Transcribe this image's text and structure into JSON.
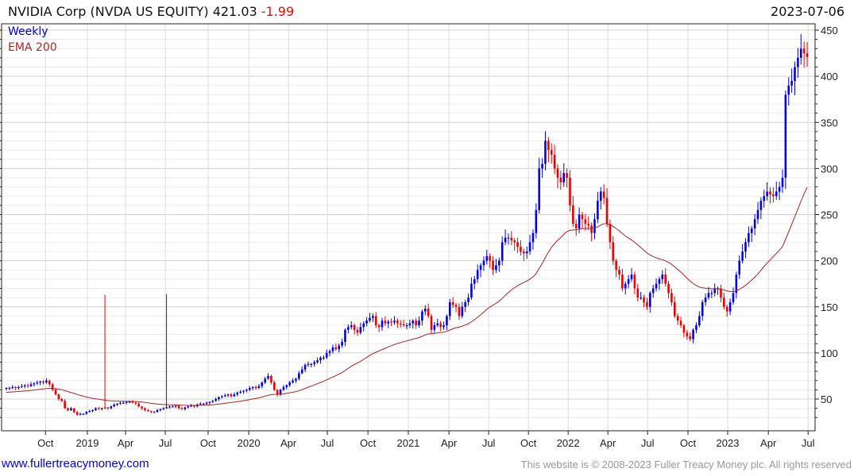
{
  "header": {
    "name": "NVIDIA Corp (NVDA US EQUITY)",
    "price": "421.03",
    "change": "-1.99",
    "date": "2023-07-06"
  },
  "legend": {
    "period": "Weekly",
    "indicator": "EMA 200"
  },
  "footer": {
    "site": "www.fullertreacymoney.com",
    "copyright": "This website is © 2008-2023 Fuller Treacy Money plc. All rights reserved"
  },
  "colors": {
    "up": "#0000ee",
    "down": "#ee0000",
    "ema": "#b22222",
    "grid": "#dcdcdc"
  },
  "chart_data": {
    "type": "candlestick",
    "title": "NVIDIA Corp (NVDA US EQUITY) 421.03 -1.99",
    "ylim": [
      25,
      455
    ],
    "y_ticks": [
      50,
      100,
      150,
      200,
      250,
      300,
      350,
      400,
      450
    ],
    "x_ticks": [
      {
        "label": "Oct",
        "week": 12.7
      },
      {
        "label": "2019",
        "week": 26.3
      },
      {
        "label": "Apr",
        "week": 38.7
      },
      {
        "label": "Jul",
        "week": 51.6
      },
      {
        "label": "Oct",
        "week": 65.5
      },
      {
        "label": "2020",
        "week": 78.7
      },
      {
        "label": "Apr",
        "week": 91.6
      },
      {
        "label": "Jul",
        "week": 104.2
      },
      {
        "label": "Oct",
        "week": 117.4
      },
      {
        "label": "2021",
        "week": 130.5
      },
      {
        "label": "Apr",
        "week": 143.7
      },
      {
        "label": "Jul",
        "week": 156.6
      },
      {
        "label": "Oct",
        "week": 169.5
      },
      {
        "label": "2022",
        "week": 182.4
      },
      {
        "label": "Apr",
        "week": 195.3
      },
      {
        "label": "Jul",
        "week": 208.2
      },
      {
        "label": "Oct",
        "week": 221.3
      },
      {
        "label": "2023",
        "week": 234.2
      },
      {
        "label": "Apr",
        "week": 247.4
      },
      {
        "label": "Jul",
        "week": 260.3
      }
    ],
    "ema_period_weeks": 40,
    "ema_seed": 57,
    "spikes": [
      {
        "week": 32,
        "high": 163,
        "dir": "down"
      },
      {
        "week": 52,
        "high": 164,
        "dir": "line"
      }
    ],
    "weekly_close": [
      62,
      62,
      63,
      62,
      63,
      64,
      65,
      64,
      66,
      67,
      68,
      69,
      68,
      70,
      66,
      60,
      55,
      50,
      48,
      40,
      38,
      40,
      36,
      33,
      34,
      34,
      36,
      37,
      38,
      40,
      39,
      40,
      41,
      40,
      42,
      44,
      45,
      46,
      46,
      47,
      47,
      46,
      45,
      42,
      40,
      38,
      37,
      36,
      36,
      38,
      39,
      40,
      41,
      42,
      42,
      43,
      40,
      39,
      41,
      42,
      43,
      42,
      44,
      45,
      45,
      46,
      47,
      48,
      50,
      52,
      53,
      54,
      55,
      53,
      55,
      57,
      58,
      59,
      60,
      62,
      63,
      62,
      64,
      68,
      72,
      75,
      68,
      60,
      55,
      60,
      63,
      65,
      68,
      70,
      72,
      78,
      82,
      87,
      88,
      88,
      90,
      92,
      95,
      95,
      100,
      102,
      106,
      104,
      108,
      112,
      125,
      128,
      130,
      125,
      122,
      128,
      132,
      135,
      138,
      140,
      130,
      128,
      135,
      132,
      134,
      133,
      135,
      132,
      131,
      130,
      130,
      132,
      135,
      130,
      135,
      145,
      148,
      140,
      125,
      130,
      132,
      128,
      130,
      140,
      155,
      152,
      150,
      140,
      150,
      155,
      160,
      175,
      180,
      190,
      195,
      200,
      205,
      200,
      190,
      195,
      200,
      220,
      225,
      225,
      222,
      220,
      215,
      210,
      208,
      210,
      220,
      230,
      255,
      300,
      305,
      330,
      320,
      315,
      300,
      290,
      285,
      295,
      290,
      260,
      240,
      235,
      250,
      245,
      240,
      238,
      230,
      245,
      265,
      275,
      268,
      240,
      220,
      200,
      190,
      185,
      170,
      175,
      180,
      185,
      170,
      160,
      160,
      155,
      150,
      165,
      170,
      175,
      180,
      185,
      175,
      165,
      155,
      140,
      135,
      130,
      122,
      118,
      115,
      125,
      130,
      140,
      155,
      160,
      165,
      165,
      170,
      170,
      160,
      150,
      145,
      155,
      165,
      185,
      200,
      210,
      220,
      230,
      235,
      245,
      255,
      265,
      270,
      275,
      272,
      270,
      275,
      280,
      290,
      380,
      390,
      395,
      410,
      420,
      430,
      425,
      421
    ]
  }
}
